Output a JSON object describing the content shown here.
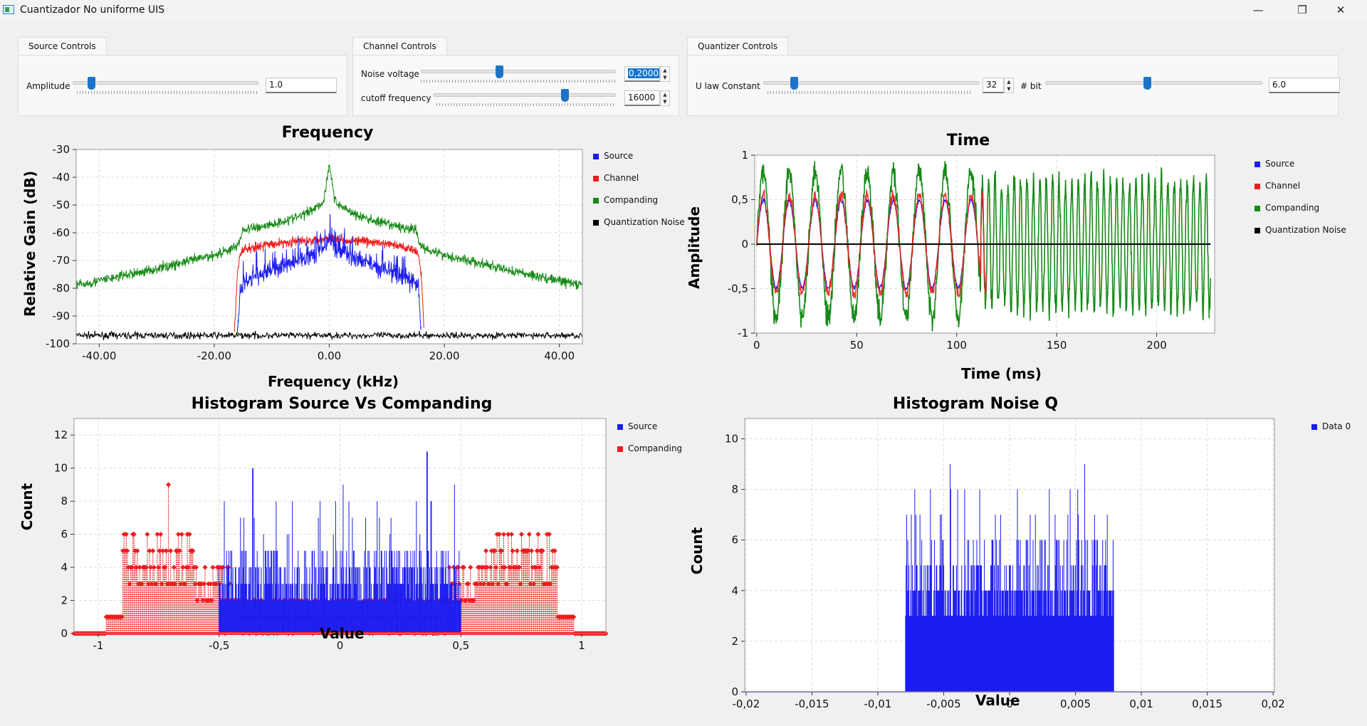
{
  "window": {
    "title": "Cuantizador No uniforme UIS",
    "buttons": [
      "—",
      "❐",
      "✕"
    ]
  },
  "controls": {
    "source": {
      "tab_label": "Source Controls",
      "amplitude_label": "Amplitude",
      "amplitude_value": "1.0",
      "amplitude_slider_level": 0.1
    },
    "channel": {
      "tab_label": "Channel Controls",
      "noise_label": "Noise voltage",
      "noise_value": "0,2000",
      "noise_slider_level": 0.4,
      "cutoff_label": "cutoff frequency",
      "cutoff_value": "16000",
      "cutoff_slider_level": 0.72
    },
    "quantizer": {
      "tab_label": "Quantizer Controls",
      "ulaw_label": "U law Constant",
      "ulaw_value": "32",
      "ulaw_slider_level": 0.14,
      "bits_label": "# bit",
      "bits_value": "6.0",
      "bits_slider_level": 0.47
    }
  },
  "colors": {
    "source": "#1c1cf0",
    "channel": "#f01c1c",
    "companding": "#168a16",
    "noise": "#000000"
  },
  "chart_data": [
    {
      "id": "frequency",
      "type": "line",
      "title": "Frequency",
      "xlabel": "Frequency (kHz)",
      "ylabel": "Relative Gain (dB)",
      "xlim": [
        -44,
        44
      ],
      "ylim": [
        -100,
        -30
      ],
      "xticks": [
        "-40.00",
        "-20.00",
        "0.00",
        "20.00",
        "40.00"
      ],
      "xtick_values": [
        -40,
        -20,
        0,
        20,
        40
      ],
      "yticks": [
        "-30",
        "-40",
        "-50",
        "-60",
        "-70",
        "-80",
        "-90",
        "-100"
      ],
      "ytick_values": [
        -30,
        -40,
        -50,
        -60,
        -70,
        -80,
        -90,
        -100
      ],
      "grid": true,
      "legend_position": "right",
      "series": [
        {
          "name": "Source",
          "color": "#1c1cf0",
          "x": [
            -16,
            -15.5,
            -15,
            -12,
            -8,
            -4,
            -1,
            0,
            1,
            4,
            8,
            12,
            15,
            15.5,
            16
          ],
          "y": [
            -97,
            -80,
            -78,
            -75,
            -72,
            -69,
            -66,
            -62,
            -66,
            -69,
            -72,
            -75,
            -78,
            -80,
            -97
          ]
        },
        {
          "name": "Channel",
          "color": "#f01c1c",
          "x": [
            -16.5,
            -16,
            -15.5,
            -15,
            -10,
            -5,
            0,
            5,
            10,
            15,
            15.5,
            16,
            16.5
          ],
          "y": [
            -97,
            -75,
            -68,
            -66,
            -64,
            -63,
            -62,
            -63,
            -64,
            -66,
            -68,
            -75,
            -97
          ]
        },
        {
          "name": "Companding",
          "color": "#168a16",
          "x": [
            -44,
            -30,
            -20,
            -16,
            -15,
            -10,
            -5,
            -1,
            0,
            1,
            5,
            10,
            15,
            16,
            20,
            30,
            44
          ],
          "y": [
            -79,
            -73,
            -68,
            -65,
            -59,
            -57,
            -54,
            -49,
            -35,
            -49,
            -54,
            -57,
            -59,
            -65,
            -68,
            -73,
            -79
          ]
        },
        {
          "name": "Quantization Noise",
          "color": "#000000",
          "x": [
            -44,
            44
          ],
          "y": [
            -97,
            -97
          ]
        }
      ]
    },
    {
      "id": "time",
      "type": "line",
      "title": "Time",
      "xlabel": "Time (ms)",
      "ylabel": "Amplitude",
      "xlim": [
        -1,
        229
      ],
      "ylim": [
        -1,
        1
      ],
      "xticks": [
        "0",
        "50",
        "100",
        "150",
        "200"
      ],
      "xtick_values": [
        0,
        50,
        100,
        150,
        200
      ],
      "yticks": [
        "1",
        "0,5",
        "0",
        "-0,5",
        "-1"
      ],
      "ytick_values": [
        1,
        0.5,
        0,
        -0.5,
        -1
      ],
      "grid": true,
      "legend_position": "right",
      "series": [
        {
          "name": "Source",
          "color": "#1c1cf0",
          "peak": 0.55
        },
        {
          "name": "Channel",
          "color": "#f01c1c",
          "peak": 0.55
        },
        {
          "name": "Companding",
          "color": "#168a16",
          "peak": 0.92
        },
        {
          "name": "Quantization Noise",
          "color": "#000000",
          "x": [
            0,
            227
          ],
          "y": [
            0,
            0
          ]
        }
      ]
    },
    {
      "id": "hist-source-companding",
      "type": "bar",
      "title": "Histogram Source Vs Companding",
      "xlabel": "Value",
      "ylabel": "Count",
      "xlim": [
        -1.1,
        1.1
      ],
      "ylim": [
        0,
        13
      ],
      "xticks": [
        "-1",
        "-0,5",
        "0",
        "0,5",
        "1"
      ],
      "xtick_values": [
        -1,
        -0.5,
        0,
        0.5,
        1
      ],
      "yticks": [
        "0",
        "2",
        "4",
        "6",
        "8",
        "10",
        "12"
      ],
      "ytick_values": [
        0,
        2,
        4,
        6,
        8,
        10,
        12
      ],
      "grid": true,
      "legend_position": "right",
      "series": [
        {
          "name": "Source",
          "color": "#1c1cf0",
          "range": [
            -0.5,
            0.5
          ],
          "peak": 11
        },
        {
          "name": "Companding",
          "color": "#f01c1c",
          "range": [
            -1.1,
            1.1
          ],
          "peak": 9
        }
      ]
    },
    {
      "id": "hist-noise",
      "type": "bar",
      "title": "Histogram Noise Q",
      "xlabel": "Value",
      "ylabel": "Count",
      "xlim": [
        -0.0201,
        0.0201
      ],
      "ylim": [
        0,
        10.8
      ],
      "xticks": [
        "-0,02",
        "-0,015",
        "-0,01",
        "-0,005",
        "0",
        "0,005",
        "0,01",
        "0,015",
        "0,02"
      ],
      "xtick_values": [
        -0.02,
        -0.015,
        -0.01,
        -0.005,
        0,
        0.005,
        0.01,
        0.015,
        0.02
      ],
      "yticks": [
        "0",
        "2",
        "4",
        "6",
        "8",
        "10"
      ],
      "ytick_values": [
        0,
        2,
        4,
        6,
        8,
        10
      ],
      "grid": true,
      "legend_position": "right",
      "series": [
        {
          "name": "Data 0",
          "color": "#1c1cf0",
          "range": [
            -0.0079,
            0.0079
          ],
          "peak": 9
        }
      ]
    }
  ]
}
